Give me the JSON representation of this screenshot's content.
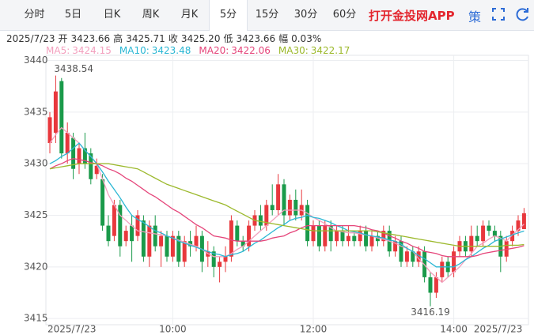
{
  "tabs": {
    "items": [
      "分时",
      "5日",
      "日K",
      "周K",
      "月K",
      "5分",
      "15分",
      "30分",
      "60分"
    ],
    "active": 5
  },
  "header": {
    "promo": "打开金投网APP",
    "strategy": "策"
  },
  "chart_data": {
    "type": "candlestick",
    "info": {
      "date": "2025/7/23",
      "fields": [
        {
          "label": "开",
          "text": "3423.66"
        },
        {
          "label": "高",
          "text": "3425.71"
        },
        {
          "label": "收",
          "text": "3425.20"
        },
        {
          "label": "低",
          "text": "3423.66"
        },
        {
          "label": "幅",
          "text": "0.03%"
        }
      ]
    },
    "categories": [
      "2025/7/23",
      null,
      null,
      null,
      null,
      null,
      null,
      null,
      null,
      null,
      null,
      null,
      null,
      null,
      null,
      null,
      null,
      null,
      null,
      null,
      null,
      "10:00",
      null,
      null,
      null,
      null,
      null,
      null,
      null,
      null,
      null,
      null,
      null,
      null,
      null,
      null,
      null,
      null,
      null,
      null,
      null,
      null,
      null,
      null,
      null,
      "12:00",
      null,
      null,
      null,
      null,
      null,
      null,
      null,
      null,
      null,
      null,
      null,
      null,
      null,
      null,
      null,
      null,
      null,
      null,
      null,
      null,
      null,
      null,
      null,
      "14:00",
      null,
      null,
      null,
      null,
      null,
      null,
      null,
      null,
      null,
      null,
      null,
      "2025/7/23"
    ],
    "open": [
      3432,
      3433,
      3438,
      3431,
      3432.5,
      3430,
      3431.5,
      3431,
      3429,
      3428.5,
      3424,
      3423,
      3426,
      3422.5,
      3424,
      3423,
      3424.5,
      3421,
      3424,
      3422,
      3423,
      3421,
      3423,
      3420.5,
      3422.5,
      3422,
      3423,
      3421,
      3421.5,
      3420,
      3420.5,
      3421,
      3424,
      3422.5,
      3422,
      3424,
      3425,
      3424,
      3426,
      3425.5,
      3428,
      3425,
      3426.5,
      3425,
      3426,
      3422.5,
      3424,
      3422,
      3424,
      3422.5,
      3423.5,
      3422.5,
      3423,
      3422.5,
      3423.5,
      3422,
      3423,
      3422.5,
      3423.5,
      3421.5,
      3422.5,
      3420.5,
      3421.5,
      3420.5,
      3421.5,
      3419,
      3417.5,
      3419,
      3420.5,
      3419.5,
      3421.5,
      3422.5,
      3421.5,
      3423,
      3422.5,
      3424,
      3423.5,
      3423,
      3421,
      3422.5,
      3423.5,
      3423.66
    ],
    "high": [
      3435,
      3438.54,
      3438.3,
      3434,
      3433,
      3432,
      3433,
      3431.5,
      3430.5,
      3429,
      3425,
      3426.5,
      3426.5,
      3424,
      3425,
      3425.5,
      3425,
      3424.5,
      3425,
      3423.5,
      3423.5,
      3423.5,
      3423.5,
      3423,
      3423.5,
      3424,
      3423.5,
      3422.5,
      3422,
      3421,
      3422,
      3425,
      3424.5,
      3423,
      3424.5,
      3425.5,
      3426,
      3426.5,
      3428,
      3429,
      3428.5,
      3427,
      3427.5,
      3427.5,
      3426.5,
      3424.5,
      3424.5,
      3424.5,
      3424.5,
      3424,
      3424,
      3424,
      3423.5,
      3424,
      3424,
      3423.5,
      3423.5,
      3424,
      3424,
      3423,
      3423,
      3422,
      3422,
      3422,
      3422,
      3419.5,
      3419.5,
      3421,
      3421,
      3422,
      3423,
      3423,
      3424,
      3424,
      3424.5,
      3424.5,
      3424,
      3423.5,
      3423,
      3424,
      3425,
      3425.71
    ],
    "low": [
      3431,
      3432,
      3430.5,
      3430,
      3428.5,
      3429,
      3429.5,
      3428,
      3428.5,
      3423.5,
      3422,
      3422.5,
      3421,
      3422,
      3420.5,
      3422.5,
      3420.5,
      3420,
      3421.5,
      3420,
      3420.5,
      3420.5,
      3420,
      3420,
      3421,
      3421.5,
      3419.5,
      3420,
      3419,
      3418.5,
      3419.5,
      3420.5,
      3422,
      3421.5,
      3421.5,
      3423.5,
      3423.5,
      3423.5,
      3425,
      3425,
      3424,
      3424.5,
      3424.5,
      3424.5,
      3422,
      3422,
      3421.5,
      3421.5,
      3421.5,
      3422,
      3422,
      3422,
      3422,
      3422,
      3421.5,
      3421.5,
      3422,
      3422,
      3421,
      3421,
      3420,
      3420,
      3420,
      3420,
      3418.5,
      3416.19,
      3417,
      3418.5,
      3419,
      3419,
      3421,
      3421,
      3421,
      3422,
      3422,
      3423,
      3422.5,
      3419.5,
      3420.5,
      3422,
      3423,
      3423.66
    ],
    "close": [
      3434.5,
      3437,
      3431,
      3433,
      3429.5,
      3431.5,
      3430,
      3428.5,
      3429.8,
      3424,
      3422.5,
      3426,
      3422,
      3423.5,
      3422.5,
      3425,
      3421,
      3424,
      3422,
      3423,
      3421,
      3423,
      3420.5,
      3422.5,
      3422,
      3423,
      3420.5,
      3421.5,
      3420,
      3420.5,
      3421,
      3424.5,
      3422.5,
      3422,
      3424,
      3425,
      3424,
      3426,
      3425.5,
      3428,
      3425,
      3426.5,
      3425,
      3426,
      3422.5,
      3424,
      3422,
      3424,
      3422.5,
      3423.5,
      3422.5,
      3423,
      3422.5,
      3423.5,
      3422,
      3423,
      3422.5,
      3423.5,
      3421.5,
      3422.5,
      3420.5,
      3421.5,
      3420.5,
      3421.5,
      3419,
      3417.5,
      3419,
      3420.5,
      3419.5,
      3421.5,
      3422.5,
      3421.5,
      3423,
      3422.5,
      3424,
      3423.5,
      3423,
      3421,
      3422.5,
      3423.5,
      3424.5,
      3425.2
    ],
    "up_color": "#e8383d",
    "down_color": "#1a9a4a",
    "series": [
      {
        "name": "MA5:",
        "color": "#f3a0be",
        "values": [
          3432,
          3432.8,
          3433.5,
          3433,
          3432.5,
          3432,
          3431.3,
          3430.7,
          3430,
          3428.5,
          3427,
          3426,
          3425,
          3424.5,
          3424,
          3423.5,
          3423.4,
          3423.3,
          3423.2,
          3423.1,
          3423,
          3422.8,
          3422.6,
          3422.4,
          3422.2,
          3422,
          3421.7,
          3421.3,
          3421,
          3421,
          3421,
          3421.3,
          3421.7,
          3422,
          3422.5,
          3423,
          3423.5,
          3424,
          3424.5,
          3425,
          3425.5,
          3425.5,
          3425.5,
          3425.5,
          3425.2,
          3424.8,
          3424.5,
          3424.2,
          3423.8,
          3423.5,
          3423.4,
          3423.3,
          3423.3,
          3423.2,
          3423.1,
          3423,
          3422.8,
          3422.7,
          3422.5,
          3422.3,
          3422,
          3421.8,
          3421.5,
          3420.8,
          3420.2,
          3419.5,
          3419,
          3418.5,
          3419,
          3419.5,
          3420,
          3420.7,
          3421.3,
          3422,
          3422.3,
          3422.7,
          3423,
          3422.8,
          3422.5,
          3423.1,
          3423.6,
          3424.15
        ]
      },
      {
        "name": "MA10:",
        "color": "#2bb7d4",
        "values": [
          3430,
          3430.3,
          3430.7,
          3431,
          3431.5,
          3432,
          3431.3,
          3430.7,
          3430,
          3429.2,
          3428.3,
          3427.5,
          3426.7,
          3425.8,
          3425,
          3424.6,
          3424.3,
          3423.9,
          3423.5,
          3423.3,
          3423,
          3422.8,
          3422.5,
          3422.3,
          3422.1,
          3421.9,
          3421.7,
          3421.5,
          3421.3,
          3421.2,
          3421,
          3421.2,
          3421.3,
          3421.5,
          3421.9,
          3422.3,
          3422.6,
          3423,
          3423.4,
          3423.8,
          3424.1,
          3424.5,
          3424.7,
          3424.8,
          3425,
          3424.8,
          3424.7,
          3424.5,
          3424.3,
          3424,
          3423.8,
          3423.5,
          3423.4,
          3423.3,
          3423.1,
          3423,
          3422.9,
          3422.8,
          3422.6,
          3422.5,
          3422.2,
          3421.8,
          3421.5,
          3421.1,
          3420.8,
          3420.4,
          3420,
          3420,
          3420,
          3420,
          3420.3,
          3420.7,
          3421,
          3421.4,
          3421.8,
          3422.1,
          3422.5,
          3422.7,
          3422.9,
          3423.1,
          3423.3,
          3423.48
        ]
      },
      {
        "name": "MA20:",
        "color": "#e5457a",
        "values": [
          3429.5,
          3429.8,
          3430,
          3430.3,
          3430.5,
          3430.4,
          3430.3,
          3430.1,
          3430,
          3429.8,
          3429.5,
          3429.3,
          3429,
          3428.6,
          3428.3,
          3427.9,
          3427.5,
          3427.1,
          3426.8,
          3426.4,
          3426,
          3425.6,
          3425.3,
          3424.9,
          3424.5,
          3424.1,
          3423.8,
          3423.4,
          3423,
          3422.9,
          3422.8,
          3422.6,
          3422.5,
          3422.5,
          3422.5,
          3422.5,
          3422.5,
          3422.6,
          3422.8,
          3422.9,
          3423,
          3423.3,
          3423.5,
          3423.8,
          3424,
          3424,
          3424,
          3424,
          3424,
          3424,
          3424,
          3424,
          3424,
          3423.9,
          3423.8,
          3423.6,
          3423.5,
          3423.3,
          3423,
          3422.8,
          3422.5,
          3422.3,
          3422,
          3421.8,
          3421.5,
          3421.4,
          3421.3,
          3421.1,
          3421,
          3421,
          3421,
          3421,
          3421,
          3421.1,
          3421.3,
          3421.4,
          3421.5,
          3421.6,
          3421.7,
          3421.8,
          3421.9,
          3422.06
        ]
      },
      {
        "name": "MA30:",
        "color": "#9cb92c",
        "values": [
          3429.5,
          3429.6,
          3429.7,
          3429.8,
          3429.9,
          3430,
          3430,
          3430,
          3430,
          3430,
          3430,
          3429.9,
          3429.8,
          3429.7,
          3429.6,
          3429.5,
          3429.2,
          3428.9,
          3428.6,
          3428.3,
          3428,
          3427.8,
          3427.6,
          3427.4,
          3427.2,
          3427,
          3426.8,
          3426.6,
          3426.4,
          3426.2,
          3426,
          3425.7,
          3425.4,
          3425.1,
          3424.8,
          3424.5,
          3424.4,
          3424.3,
          3424.2,
          3424.1,
          3424,
          3423.9,
          3423.8,
          3423.7,
          3423.6,
          3423.5,
          3423.5,
          3423.5,
          3423.5,
          3423.5,
          3423.5,
          3423.5,
          3423.5,
          3423.5,
          3423.5,
          3423.5,
          3423.4,
          3423.3,
          3423.2,
          3423.1,
          3423,
          3422.9,
          3422.8,
          3422.7,
          3422.6,
          3422.5,
          3422.4,
          3422.3,
          3422.2,
          3422.1,
          3422,
          3422,
          3422,
          3422,
          3422,
          3422,
          3422,
          3422,
          3422.1,
          3422.1,
          3422.1,
          3422.17
        ]
      }
    ],
    "ylim": [
      3414.4,
      3440.5
    ],
    "yticks": [
      3415,
      3420,
      3425,
      3430,
      3435,
      3440
    ],
    "grid": true,
    "max_index": 1,
    "min_index": 65
  }
}
